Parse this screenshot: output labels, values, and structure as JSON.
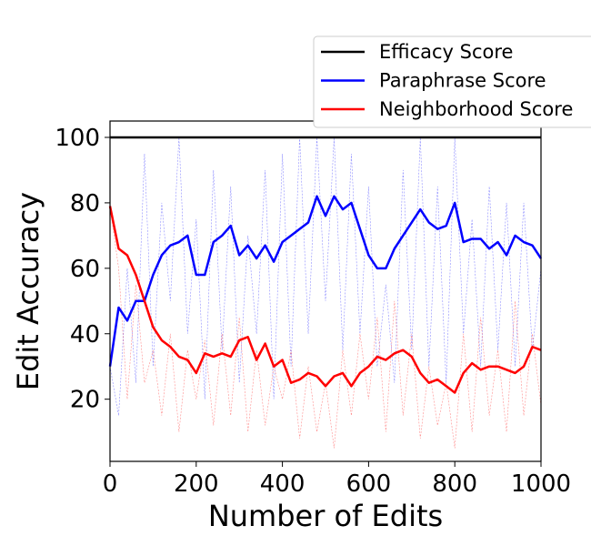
{
  "chart_data": {
    "type": "line",
    "xlabel": "Number of Edits",
    "ylabel": "Edit Accuracy",
    "xlim": [
      0,
      1000
    ],
    "ylim": [
      1,
      105
    ],
    "xticks": [
      0,
      200,
      400,
      600,
      800,
      1000
    ],
    "yticks": [
      20,
      40,
      60,
      80,
      100
    ],
    "grid": false,
    "legend_position": "top-right, outside plot",
    "series": [
      {
        "name": "Efficacy Score",
        "color": "#000000",
        "x": [
          0,
          1000
        ],
        "smoothed": [
          100,
          100
        ]
      },
      {
        "name": "Paraphrase Score",
        "color": "#0000ff",
        "x": [
          0,
          20,
          40,
          60,
          80,
          100,
          120,
          140,
          160,
          180,
          200,
          220,
          240,
          260,
          280,
          300,
          320,
          340,
          360,
          380,
          400,
          420,
          440,
          460,
          480,
          500,
          520,
          540,
          560,
          580,
          600,
          620,
          640,
          660,
          680,
          700,
          720,
          740,
          760,
          780,
          800,
          820,
          840,
          860,
          880,
          900,
          920,
          940,
          960,
          980,
          1000
        ],
        "smoothed": [
          30,
          48,
          44,
          50,
          50,
          58,
          64,
          67,
          68,
          70,
          58,
          58,
          68,
          70,
          73,
          64,
          67,
          63,
          67,
          62,
          68,
          70,
          72,
          74,
          82,
          76,
          82,
          78,
          80,
          72,
          64,
          60,
          60,
          66,
          70,
          74,
          78,
          74,
          72,
          73,
          80,
          68,
          69,
          69,
          66,
          68,
          64,
          70,
          68,
          67,
          63
        ],
        "raw": [
          30,
          15,
          60,
          25,
          95,
          30,
          80,
          50,
          100,
          40,
          75,
          20,
          90,
          35,
          85,
          25,
          70,
          40,
          90,
          20,
          95,
          30,
          100,
          40,
          100,
          50,
          100,
          35,
          95,
          40,
          85,
          30,
          55,
          25,
          90,
          35,
          100,
          30,
          85,
          25,
          100,
          40,
          75,
          30,
          85,
          35,
          80,
          30,
          80,
          35,
          60
        ]
      },
      {
        "name": "Neighborhood Score",
        "color": "#ff0000",
        "x": [
          0,
          20,
          40,
          60,
          80,
          100,
          120,
          140,
          160,
          180,
          200,
          220,
          240,
          260,
          280,
          300,
          320,
          340,
          360,
          380,
          400,
          420,
          440,
          460,
          480,
          500,
          520,
          540,
          560,
          580,
          600,
          620,
          640,
          660,
          680,
          700,
          720,
          740,
          760,
          780,
          800,
          820,
          840,
          860,
          880,
          900,
          920,
          940,
          960,
          980,
          1000
        ],
        "smoothed": [
          79,
          66,
          64,
          58,
          50,
          42,
          38,
          36,
          33,
          32,
          28,
          34,
          33,
          34,
          33,
          38,
          39,
          32,
          37,
          30,
          32,
          25,
          26,
          28,
          27,
          24,
          27,
          28,
          24,
          28,
          30,
          33,
          32,
          34,
          35,
          33,
          28,
          25,
          26,
          24,
          22,
          28,
          31,
          29,
          30,
          30,
          29,
          28,
          30,
          36,
          35
        ],
        "raw": [
          79,
          60,
          20,
          55,
          25,
          35,
          15,
          40,
          10,
          35,
          20,
          38,
          12,
          40,
          15,
          45,
          10,
          35,
          12,
          30,
          20,
          35,
          8,
          30,
          10,
          25,
          5,
          35,
          15,
          40,
          20,
          45,
          10,
          50,
          15,
          40,
          8,
          30,
          12,
          25,
          5,
          40,
          10,
          45,
          15,
          35,
          10,
          50,
          15,
          40,
          18
        ]
      }
    ]
  }
}
